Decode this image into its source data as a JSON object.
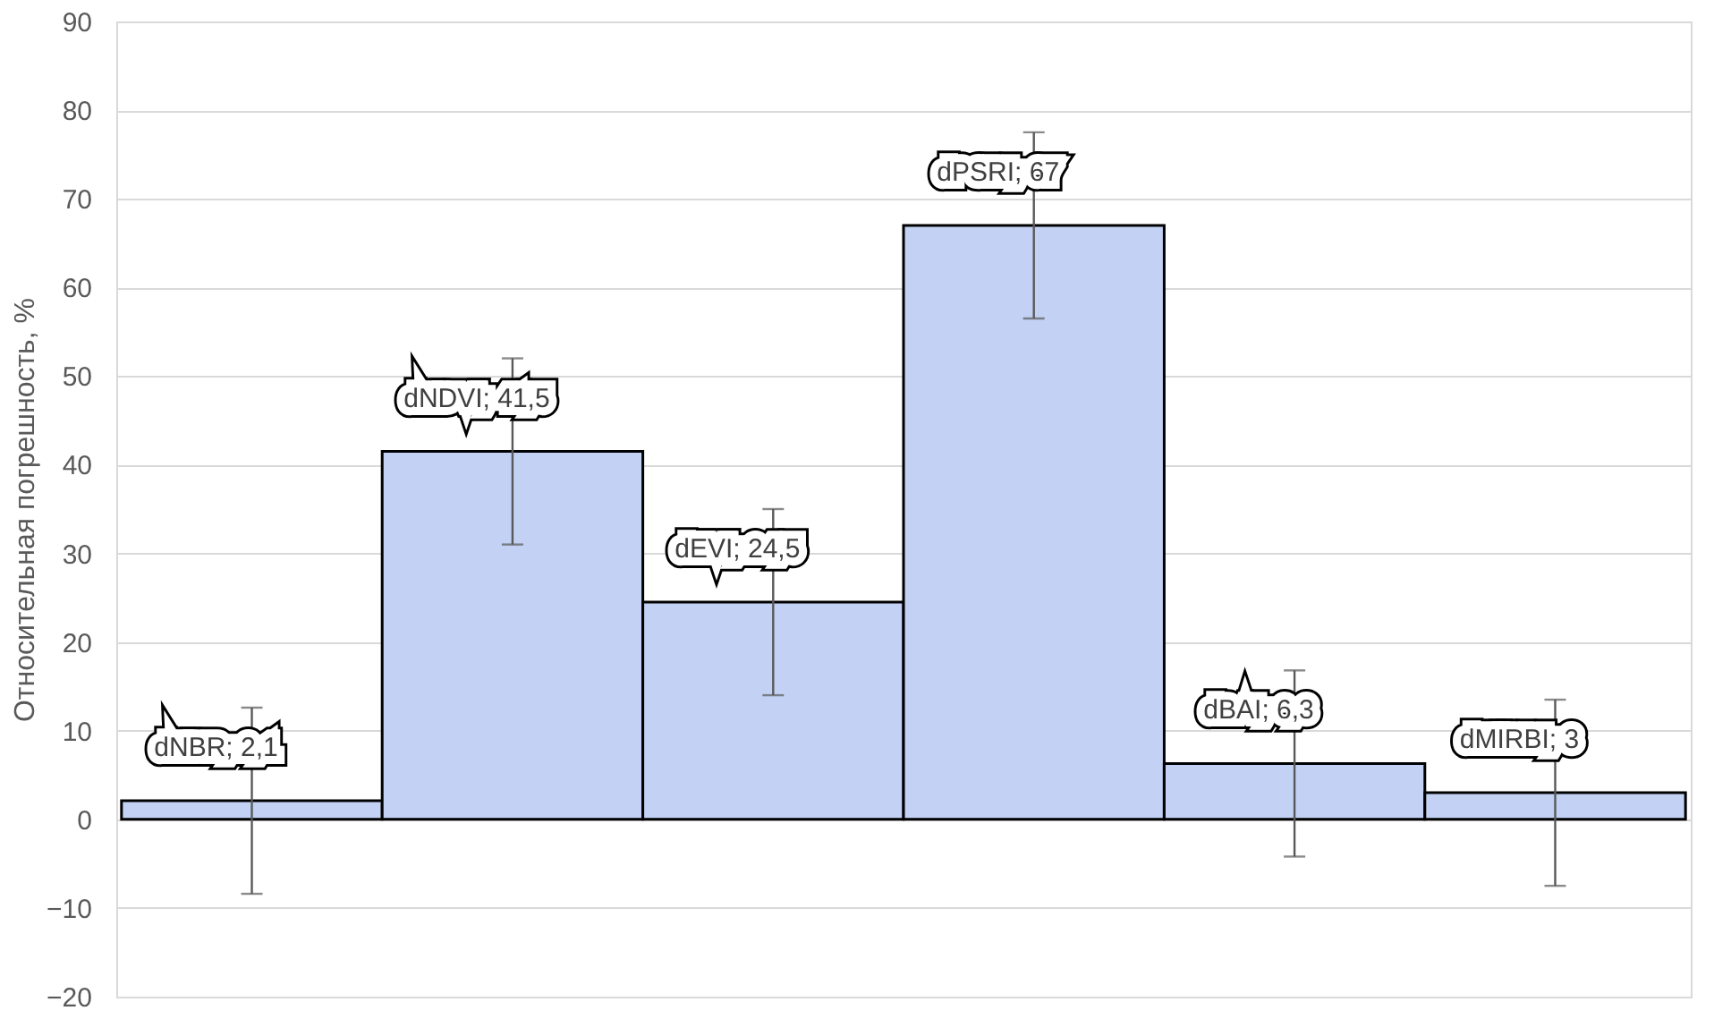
{
  "chart_data": {
    "type": "bar",
    "ylabel": "Относительная погрешность, %",
    "categories": [
      null,
      null,
      null,
      null,
      null,
      null
    ],
    "values": [
      2.1,
      41.5,
      24.5,
      67,
      6.3,
      3
    ],
    "errors": [
      10.5,
      10.5,
      10.5,
      10.5,
      10.5,
      10.5
    ],
    "value_labels": [
      "dNBR; 2,1",
      "dNDVI; 41,5",
      "dEVI; 24,5",
      "dPSRI; 67",
      "dBAI; 6,3",
      "dMIRBI; 3"
    ],
    "color": "#c3d2f4",
    "ylim": [
      -20,
      90
    ],
    "yticks": [
      -20,
      -10,
      0,
      10,
      20,
      30,
      40,
      50,
      60,
      70,
      80,
      90
    ],
    "grid": "y",
    "tick_labels": "y"
  }
}
